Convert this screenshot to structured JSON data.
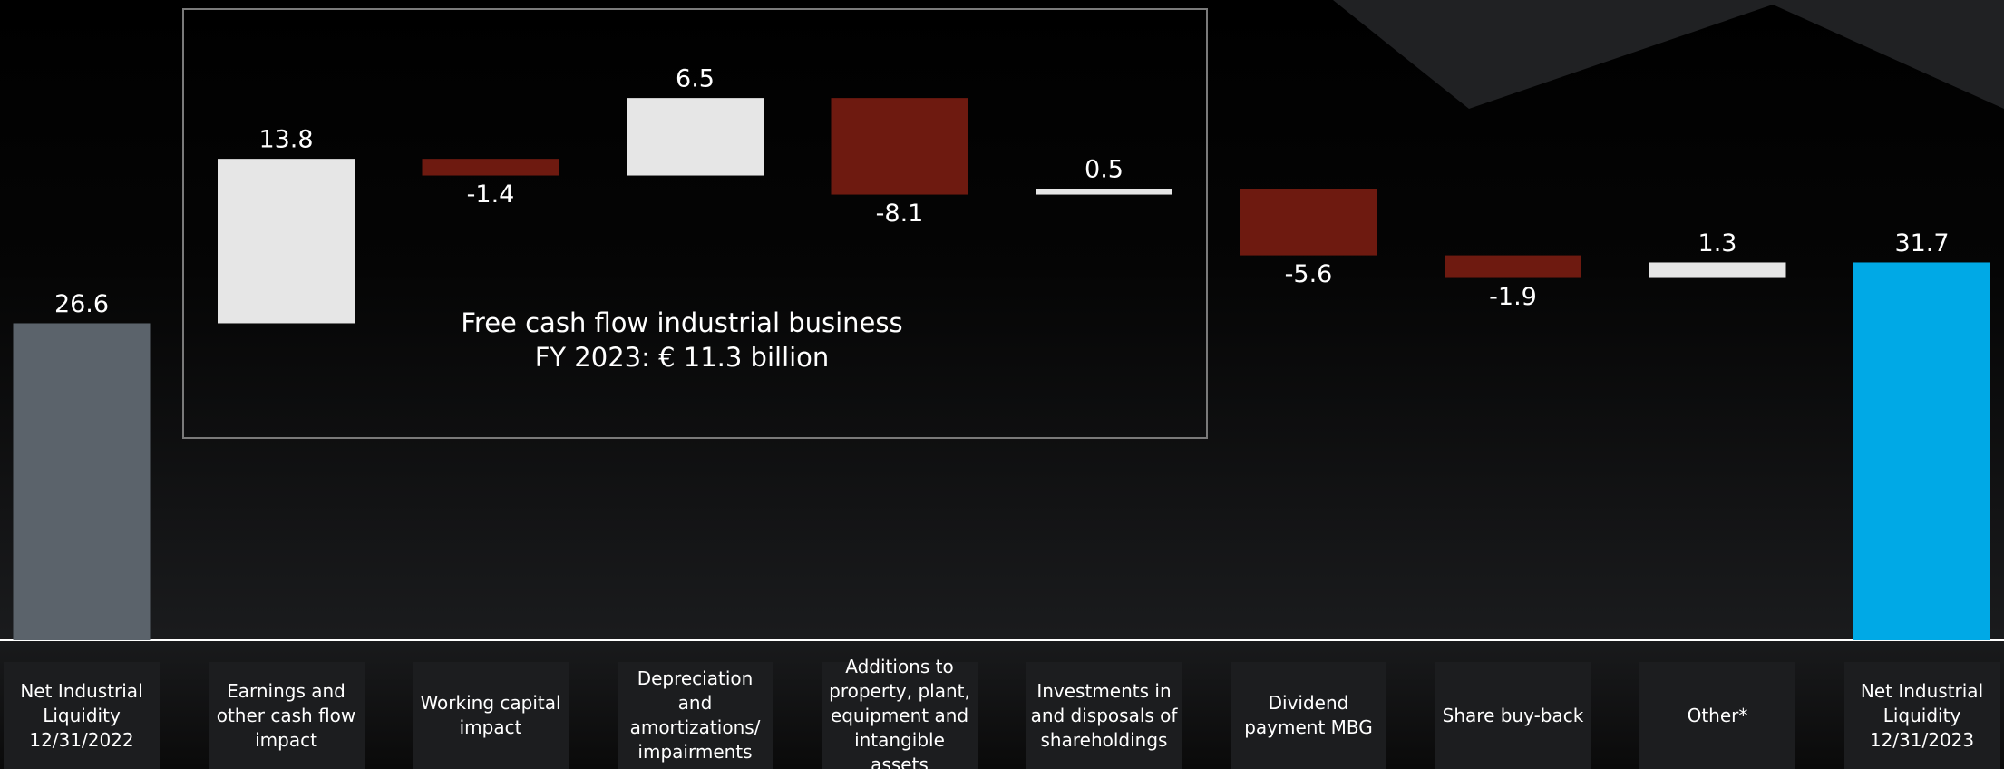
{
  "chart_data": {
    "type": "waterfall",
    "categories": [
      "Net Industrial Liquidity 12/31/2022",
      "Earnings and other cash flow impact",
      "Working capital impact",
      "Depreciation and amortizations/ impairments",
      "Additions to property, plant, equipment and intangible assets",
      "Investments in and disposals of shareholdings",
      "Dividend payment MBG",
      "Share buy-back",
      "Other*",
      "Net Industrial Liquidity 12/31/2023"
    ],
    "values": [
      26.6,
      13.8,
      -1.4,
      6.5,
      -8.1,
      0.5,
      -5.6,
      -1.9,
      1.3,
      31.7
    ],
    "measure": [
      "absolute",
      "relative",
      "relative",
      "relative",
      "relative",
      "relative",
      "relative",
      "relative",
      "relative",
      "total"
    ],
    "colors": {
      "absolute": "#5b636b",
      "increase": "#e6e6e6",
      "decrease": "#6e1a10",
      "total": "#00a9e6"
    },
    "annotations": [
      "Free cash flow industrial business",
      "FY 2023: € 11.3 billion"
    ]
  }
}
